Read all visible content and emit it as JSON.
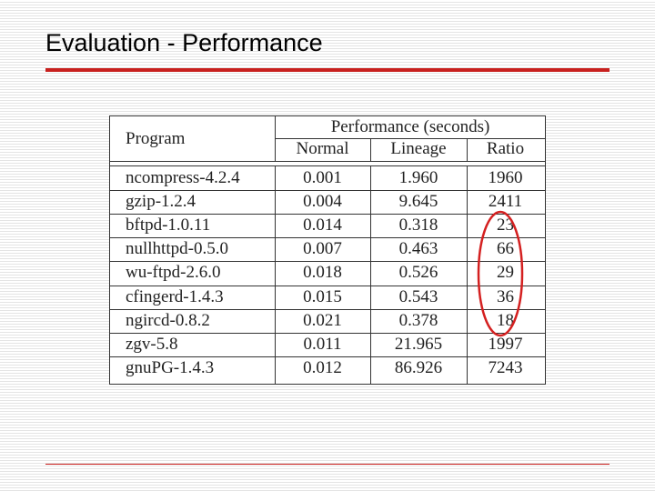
{
  "header": {
    "title": "Evaluation - Performance"
  },
  "table": {
    "group_header": "Performance (seconds)",
    "columns": [
      "Program",
      "Normal",
      "Lineage",
      "Ratio"
    ],
    "rows": [
      [
        "ncompress-4.2.4",
        "0.001",
        "1.960",
        "1960"
      ],
      [
        "gzip-1.2.4",
        "0.004",
        "9.645",
        "2411"
      ],
      [
        "bftpd-1.0.11",
        "0.014",
        "0.318",
        "23"
      ],
      [
        "nullhttpd-0.5.0",
        "0.007",
        "0.463",
        "66"
      ],
      [
        "wu-ftpd-2.6.0",
        "0.018",
        "0.526",
        "29"
      ],
      [
        "cfingerd-1.4.3",
        "0.015",
        "0.543",
        "36"
      ],
      [
        "ngircd-0.8.2",
        "0.021",
        "0.378",
        "18"
      ],
      [
        "zgv-5.8",
        "0.011",
        "21.965",
        "1997"
      ],
      [
        "gnuPG-1.4.3",
        "0.012",
        "86.926",
        "7243"
      ]
    ]
  }
}
